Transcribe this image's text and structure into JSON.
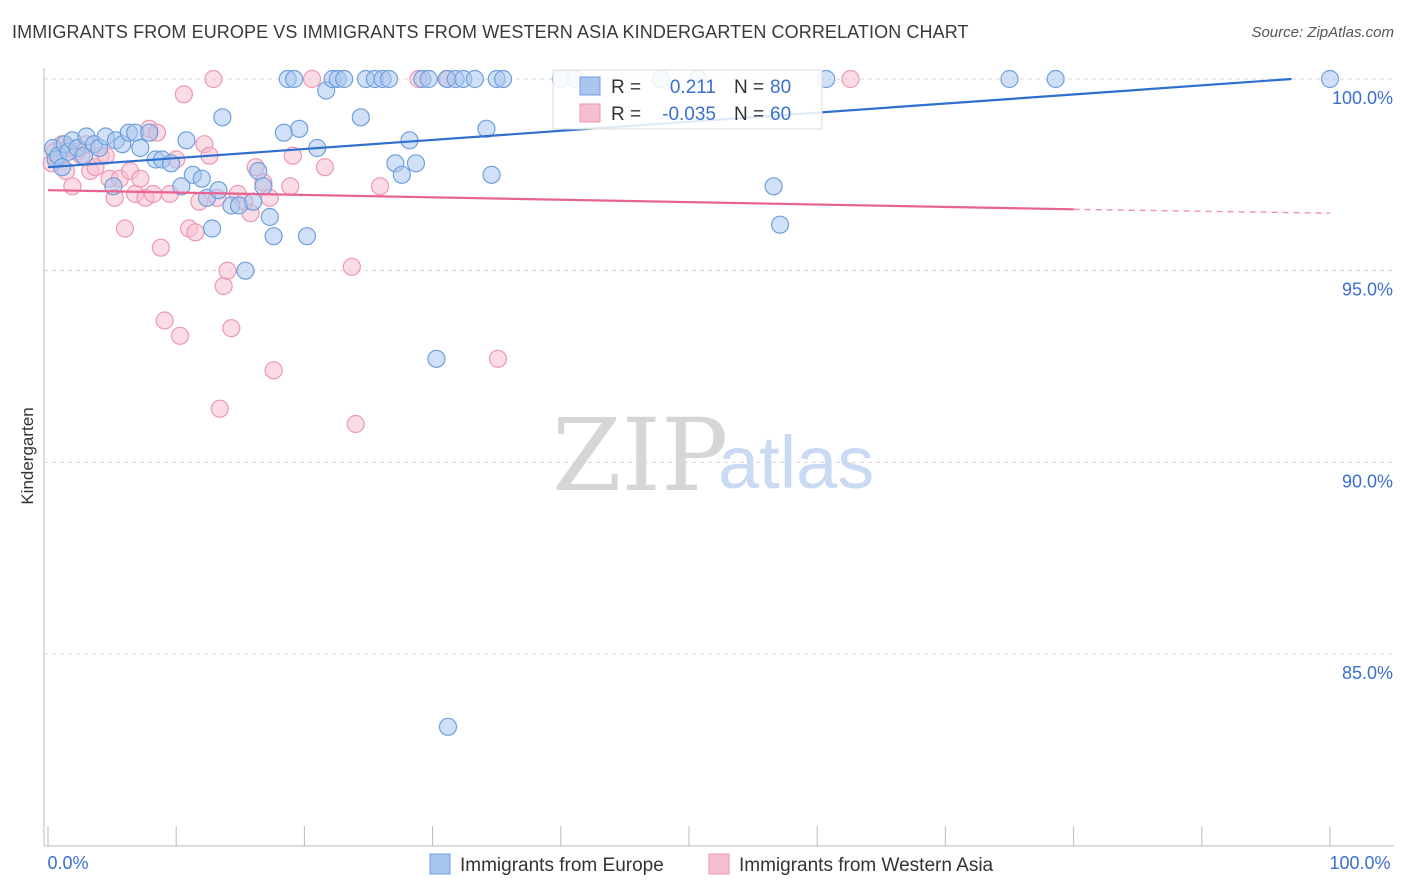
{
  "title": "IMMIGRANTS FROM EUROPE VS IMMIGRANTS FROM WESTERN ASIA KINDERGARTEN CORRELATION CHART",
  "source": "Source: ZipAtlas.com",
  "watermark": {
    "zip": "ZIP",
    "atlas": "atlas"
  },
  "stats": {
    "europe": {
      "r_label": "R =",
      "r": "0.211",
      "n_label": "N =",
      "n": "80"
    },
    "wasia": {
      "r_label": "R =",
      "r": "-0.035",
      "n_label": "N =",
      "n": "60"
    }
  },
  "colors": {
    "europe_fill": "#a9c6ee",
    "europe_stroke": "#6f9fdc",
    "europe_line": "#2f6fcf",
    "wasia_fill": "#f6bfd0",
    "wasia_stroke": "#ee97b3",
    "wasia_line": "#e8638f",
    "axis_label": "#3b6fd0",
    "grid": "#d8d8d8"
  },
  "chart_data": {
    "type": "scatter",
    "title": "IMMIGRANTS FROM EUROPE VS IMMIGRANTS FROM WESTERN ASIA KINDERGARTEN CORRELATION CHART",
    "xlabel": "",
    "ylabel": "Kindergarten",
    "xlim": [
      0,
      100
    ],
    "ylim": [
      80.8,
      100.8
    ],
    "x_tick_labels": [
      "0.0%",
      "100.0%"
    ],
    "y_ticks": [
      85,
      90,
      95,
      100
    ],
    "y_tick_labels": [
      "85.0%",
      "90.0%",
      "95.0%",
      "100.0%"
    ],
    "legend": [
      "Immigrants from Europe",
      "Immigrants from Western Asia"
    ],
    "series": [
      {
        "name": "Immigrants from Europe",
        "trend": {
          "x": [
            0,
            97
          ],
          "y": [
            97.7,
            100.0
          ]
        },
        "points": [
          [
            0.4,
            98.2
          ],
          [
            0.6,
            97.9
          ],
          [
            0.8,
            98.0
          ],
          [
            1.1,
            97.7
          ],
          [
            1.3,
            98.3
          ],
          [
            1.6,
            98.1
          ],
          [
            1.9,
            98.4
          ],
          [
            2.3,
            98.2
          ],
          [
            2.8,
            98.0
          ],
          [
            3.0,
            98.5
          ],
          [
            3.6,
            98.3
          ],
          [
            4.0,
            98.2
          ],
          [
            4.5,
            98.5
          ],
          [
            5.1,
            97.2
          ],
          [
            5.3,
            98.4
          ],
          [
            5.8,
            98.3
          ],
          [
            6.3,
            98.6
          ],
          [
            6.8,
            98.6
          ],
          [
            7.2,
            98.2
          ],
          [
            7.9,
            98.6
          ],
          [
            8.4,
            97.9
          ],
          [
            8.9,
            97.9
          ],
          [
            9.6,
            97.8
          ],
          [
            10.4,
            97.2
          ],
          [
            10.8,
            98.4
          ],
          [
            11.3,
            97.5
          ],
          [
            12.0,
            97.4
          ],
          [
            12.4,
            96.9
          ],
          [
            12.8,
            96.1
          ],
          [
            13.3,
            97.1
          ],
          [
            13.6,
            99.0
          ],
          [
            14.3,
            96.7
          ],
          [
            14.9,
            96.7
          ],
          [
            15.4,
            95.0
          ],
          [
            16.0,
            96.8
          ],
          [
            16.4,
            97.6
          ],
          [
            16.8,
            97.2
          ],
          [
            17.3,
            96.4
          ],
          [
            17.6,
            95.9
          ],
          [
            18.4,
            98.6
          ],
          [
            18.7,
            100.0
          ],
          [
            19.2,
            100.0
          ],
          [
            19.6,
            98.7
          ],
          [
            20.2,
            95.9
          ],
          [
            21.0,
            98.2
          ],
          [
            21.7,
            99.7
          ],
          [
            22.2,
            100.0
          ],
          [
            22.6,
            100.0
          ],
          [
            23.1,
            100.0
          ],
          [
            24.4,
            99.0
          ],
          [
            24.8,
            100.0
          ],
          [
            25.5,
            100.0
          ],
          [
            26.1,
            100.0
          ],
          [
            26.6,
            100.0
          ],
          [
            27.1,
            97.8
          ],
          [
            27.6,
            97.5
          ],
          [
            28.2,
            98.4
          ],
          [
            28.7,
            97.8
          ],
          [
            29.2,
            100.0
          ],
          [
            29.7,
            100.0
          ],
          [
            30.3,
            92.7
          ],
          [
            31.1,
            100.0
          ],
          [
            31.8,
            100.0
          ],
          [
            31.2,
            83.1
          ],
          [
            32.4,
            100.0
          ],
          [
            33.3,
            100.0
          ],
          [
            34.2,
            98.7
          ],
          [
            34.6,
            97.5
          ],
          [
            35.0,
            100.0
          ],
          [
            35.5,
            100.0
          ],
          [
            40.0,
            100.0
          ],
          [
            41.1,
            100.0
          ],
          [
            47.8,
            100.0
          ],
          [
            50.7,
            100.0
          ],
          [
            56.6,
            97.2
          ],
          [
            57.1,
            96.2
          ],
          [
            60.7,
            100.0
          ],
          [
            75.0,
            100.0
          ],
          [
            78.6,
            100.0
          ],
          [
            100.0,
            100.0
          ]
        ]
      },
      {
        "name": "Immigrants from Western Asia",
        "trend": {
          "x": [
            0,
            80
          ],
          "y": [
            97.1,
            96.6
          ]
        },
        "trend_dashed": {
          "x": [
            80,
            100
          ],
          "y": [
            96.6,
            96.5
          ]
        },
        "points": [
          [
            0.3,
            97.8
          ],
          [
            0.5,
            98.1
          ],
          [
            0.8,
            97.9
          ],
          [
            1.1,
            98.3
          ],
          [
            1.4,
            97.6
          ],
          [
            1.6,
            98.2
          ],
          [
            1.9,
            97.2
          ],
          [
            2.2,
            98.1
          ],
          [
            2.6,
            98.0
          ],
          [
            3.0,
            98.3
          ],
          [
            3.3,
            97.6
          ],
          [
            3.7,
            97.7
          ],
          [
            4.1,
            98.0
          ],
          [
            4.5,
            98.0
          ],
          [
            4.8,
            97.4
          ],
          [
            5.2,
            96.9
          ],
          [
            5.6,
            97.4
          ],
          [
            6.0,
            96.1
          ],
          [
            6.4,
            97.6
          ],
          [
            6.8,
            97.0
          ],
          [
            7.2,
            97.4
          ],
          [
            7.6,
            96.9
          ],
          [
            7.9,
            98.7
          ],
          [
            8.2,
            97.0
          ],
          [
            8.5,
            98.6
          ],
          [
            8.8,
            95.6
          ],
          [
            9.1,
            93.7
          ],
          [
            9.5,
            97.0
          ],
          [
            10.0,
            97.9
          ],
          [
            10.3,
            93.3
          ],
          [
            10.6,
            99.6
          ],
          [
            11.0,
            96.1
          ],
          [
            11.5,
            96.0
          ],
          [
            11.8,
            96.8
          ],
          [
            12.2,
            98.3
          ],
          [
            12.6,
            98.0
          ],
          [
            12.9,
            100.0
          ],
          [
            13.2,
            96.9
          ],
          [
            13.4,
            91.4
          ],
          [
            13.7,
            94.6
          ],
          [
            14.0,
            95.0
          ],
          [
            14.3,
            93.5
          ],
          [
            14.8,
            97.0
          ],
          [
            15.3,
            96.8
          ],
          [
            15.8,
            96.5
          ],
          [
            16.2,
            97.7
          ],
          [
            16.8,
            97.3
          ],
          [
            17.3,
            96.9
          ],
          [
            17.6,
            92.4
          ],
          [
            18.9,
            97.2
          ],
          [
            19.1,
            98.0
          ],
          [
            20.6,
            100.0
          ],
          [
            21.6,
            97.7
          ],
          [
            23.7,
            95.1
          ],
          [
            24.0,
            91.0
          ],
          [
            25.9,
            97.2
          ],
          [
            28.9,
            100.0
          ],
          [
            31.2,
            100.0
          ],
          [
            35.1,
            92.7
          ],
          [
            62.6,
            100.0
          ]
        ]
      }
    ]
  }
}
